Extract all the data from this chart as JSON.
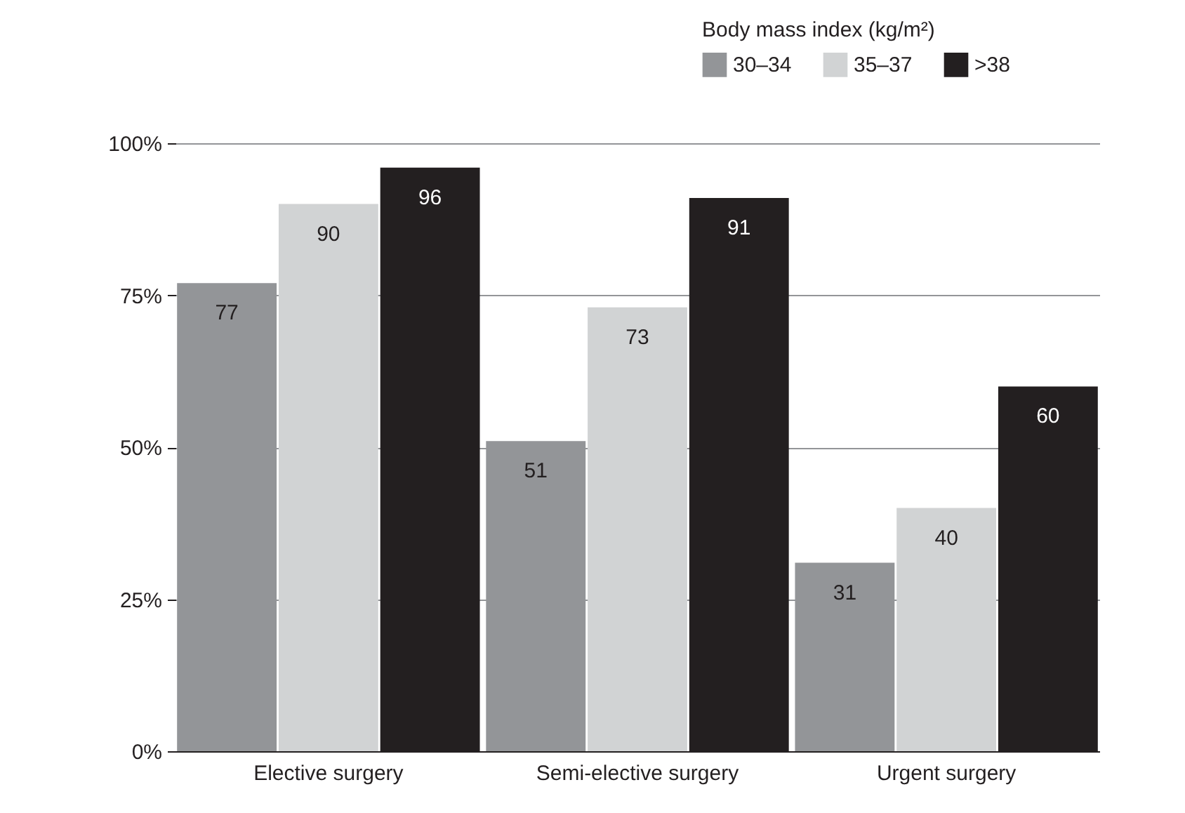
{
  "chart_data": {
    "type": "bar",
    "legend_title": "Body mass index (kg/m²)",
    "categories": [
      "Elective surgery",
      "Semi-elective surgery",
      "Urgent surgery"
    ],
    "series": [
      {
        "name": "30–34",
        "color": "#939598",
        "values": [
          77,
          51,
          31
        ]
      },
      {
        "name": "35–37",
        "color": "#d1d3d4",
        "values": [
          90,
          73,
          40
        ]
      },
      {
        "name": ">38",
        "color": "#231f20",
        "values": [
          96,
          91,
          60
        ]
      }
    ],
    "ylim": [
      0,
      100
    ],
    "yticks": [
      {
        "value": 0,
        "label": "0%"
      },
      {
        "value": 25,
        "label": "25%"
      },
      {
        "value": 50,
        "label": "50%"
      },
      {
        "value": 75,
        "label": "75%"
      },
      {
        "value": 100,
        "label": "100%"
      }
    ],
    "grid": "y",
    "legend": "top right",
    "data_labels": true
  }
}
